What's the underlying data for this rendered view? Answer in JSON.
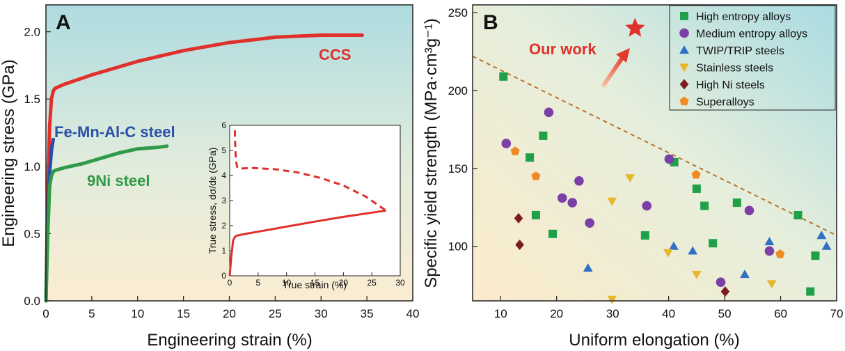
{
  "chart_data": [
    {
      "type": "line",
      "panel": "A",
      "xlabel": "Engineering strain (%)",
      "ylabel": "Engineering stress (GPa)",
      "xlim": [
        0,
        40
      ],
      "ylim": [
        0,
        2.2
      ],
      "xticks": [
        "0",
        "5",
        "10",
        "15",
        "20",
        "25",
        "30",
        "35",
        "40"
      ],
      "yticks": [
        "0.0",
        "0.5",
        "1.0",
        "1.5",
        "2.0"
      ],
      "series": [
        {
          "name": "CCS",
          "color": "#e0302c",
          "x": [
            0,
            0.2,
            0.4,
            0.6,
            0.8,
            1,
            2,
            5,
            10,
            15,
            20,
            25,
            30,
            34.5
          ],
          "y": [
            0,
            0.8,
            1.3,
            1.5,
            1.56,
            1.58,
            1.61,
            1.68,
            1.78,
            1.86,
            1.92,
            1.96,
            1.975,
            1.975
          ]
        },
        {
          "name": "Fe-Mn-Al-C steel",
          "color": "#2a4fa8",
          "x": [
            0,
            0.2,
            0.4,
            0.6,
            0.8
          ],
          "y": [
            0,
            0.6,
            0.95,
            1.12,
            1.2
          ]
        },
        {
          "name": "9Ni steel",
          "color": "#2f9a47",
          "x": [
            0,
            0.2,
            0.4,
            0.6,
            0.8,
            1,
            2,
            4,
            6,
            8,
            10,
            12,
            13.2
          ],
          "y": [
            0,
            0.5,
            0.85,
            0.93,
            0.96,
            0.97,
            0.99,
            1.02,
            1.06,
            1.1,
            1.13,
            1.14,
            1.15
          ]
        }
      ],
      "annotations": [
        "CCS",
        "Fe-Mn-Al-C steel",
        "9Ni steel"
      ],
      "inset": {
        "xlabel": "True strain (%)",
        "ylabel": "True stress, dσ/dε (GPa)",
        "xlim": [
          0,
          30
        ],
        "ylim": [
          0,
          6
        ],
        "xticks": [
          "0",
          "5",
          "10",
          "15",
          "20",
          "25",
          "30"
        ],
        "yticks": [
          "0",
          "1",
          "2",
          "3",
          "4",
          "5",
          "6"
        ],
        "series": [
          {
            "name": "",
            "style": "solid",
            "color": "#e0302c",
            "x": [
              0,
              0.3,
              0.6,
              0.9,
              1.2,
              3,
              6,
              10,
              15,
              20,
              25,
              27.5
            ],
            "y": [
              0,
              0.8,
              1.4,
              1.55,
              1.6,
              1.68,
              1.8,
              1.96,
              2.16,
              2.35,
              2.52,
              2.6
            ]
          },
          {
            "name": "",
            "style": "dashed",
            "color": "#e0302c",
            "x": [
              0.9,
              1.0,
              1.1,
              1.3,
              1.5,
              2,
              4,
              8,
              12,
              16,
              20,
              24,
              27.5
            ],
            "y": [
              5.8,
              5.0,
              4.6,
              4.35,
              4.28,
              4.28,
              4.3,
              4.25,
              4.12,
              3.9,
              3.6,
              3.15,
              2.6
            ]
          }
        ]
      }
    },
    {
      "type": "scatter",
      "panel": "B",
      "xlabel": "Uniform elongation (%)",
      "ylabel": "Specific yield strength (MPa·cm³g⁻¹)",
      "xlim": [
        5,
        70
      ],
      "ylim": [
        65,
        255
      ],
      "xticks": [
        "10",
        "20",
        "30",
        "40",
        "50",
        "60",
        "70"
      ],
      "yticks": [
        "100",
        "150",
        "200",
        "250"
      ],
      "legend_position": "top-right",
      "series": [
        {
          "name": "High entropy alloys",
          "marker": "square",
          "color": "#21a04a",
          "points": [
            [
              10.5,
              209
            ],
            [
              15.2,
              157
            ],
            [
              16.3,
              120
            ],
            [
              17.6,
              171
            ],
            [
              19.3,
              108
            ],
            [
              35.8,
              107
            ],
            [
              41,
              154
            ],
            [
              45,
              137
            ],
            [
              46.4,
              126
            ],
            [
              47.9,
              102
            ],
            [
              52.2,
              128
            ],
            [
              63.1,
              120
            ],
            [
              65.3,
              71
            ],
            [
              66.2,
              94
            ]
          ]
        },
        {
          "name": "Medium entropy alloys",
          "marker": "circle",
          "color": "#7b3fa6",
          "points": [
            [
              11,
              166
            ],
            [
              18.6,
              186
            ],
            [
              21,
              131
            ],
            [
              22.8,
              128
            ],
            [
              24,
              142
            ],
            [
              25.9,
              115
            ],
            [
              36.1,
              126
            ],
            [
              40.1,
              156
            ],
            [
              49.3,
              77
            ],
            [
              54.4,
              123
            ],
            [
              58,
              97
            ]
          ]
        },
        {
          "name": "TWIP/TRIP steels",
          "marker": "triangle-up",
          "color": "#2f6fc4",
          "points": [
            [
              25.6,
              86
            ],
            [
              40.9,
              100
            ],
            [
              44.3,
              97
            ],
            [
              53.6,
              82
            ],
            [
              58,
              103
            ],
            [
              67.3,
              107
            ],
            [
              68.2,
              100
            ]
          ]
        },
        {
          "name": "Stainless steels",
          "marker": "triangle-down",
          "color": "#e8b72c",
          "points": [
            [
              29.9,
              129
            ],
            [
              29.9,
              66
            ],
            [
              33.1,
              144
            ],
            [
              39.9,
              96
            ],
            [
              45,
              82
            ],
            [
              58.4,
              76
            ]
          ]
        },
        {
          "name": "High Ni steels",
          "marker": "diamond",
          "color": "#7a1d1d",
          "points": [
            [
              13.2,
              118
            ],
            [
              13.4,
              101
            ],
            [
              50.1,
              71
            ]
          ]
        },
        {
          "name": "Superalloys",
          "marker": "pentagon",
          "color": "#f08a24",
          "points": [
            [
              12.6,
              161
            ],
            [
              16.3,
              145
            ],
            [
              44.9,
              146
            ],
            [
              59.9,
              95
            ]
          ]
        }
      ],
      "highlight": {
        "label": "Our work",
        "x": 34,
        "y": 240,
        "marker": "star",
        "color": "#e0302c"
      },
      "trend_line": {
        "style": "dashed",
        "color": "#b5742f",
        "x": [
          5,
          70
        ],
        "y": [
          222,
          107
        ]
      }
    }
  ]
}
